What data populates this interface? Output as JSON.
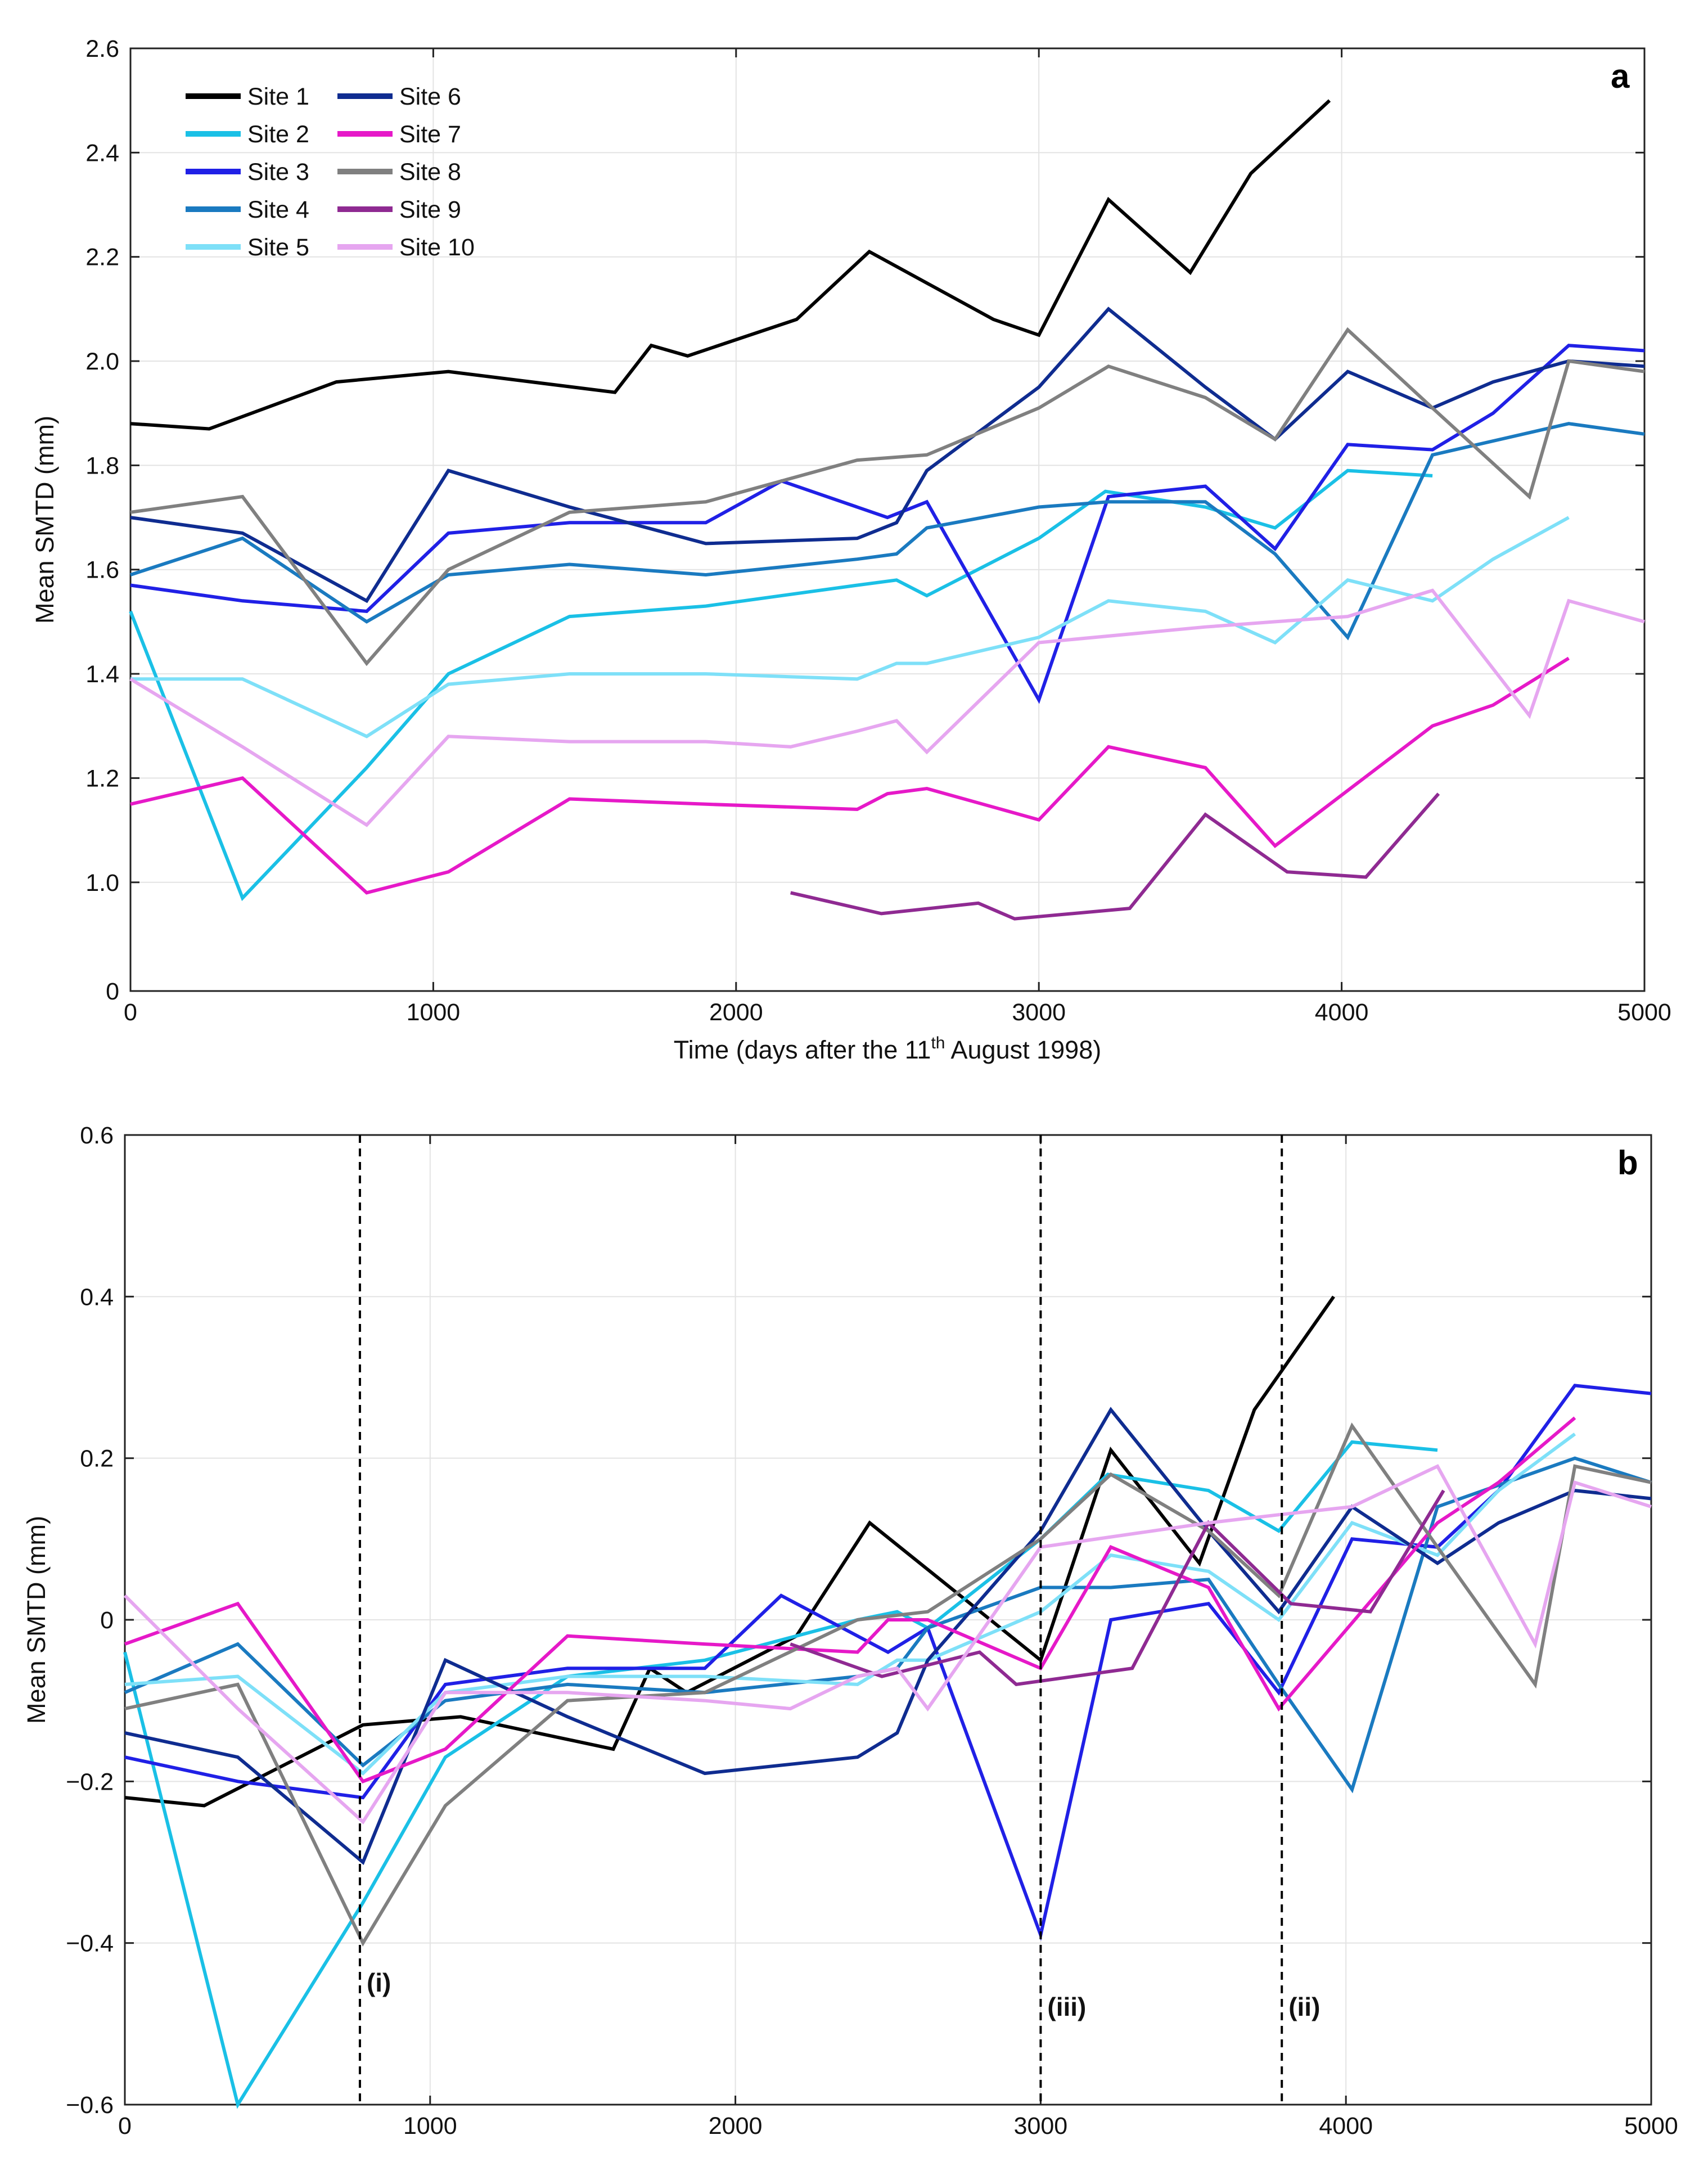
{
  "chart_data": [
    {
      "type": "line",
      "panel_label": "a",
      "title": "",
      "xlabel": "Time (days after the 11th August 1998)",
      "xlabel_main": "Time (days after the 11",
      "xlabel_sup": "th",
      "xlabel_tail": " August 1998)",
      "ylabel": "Mean SMTD (mm)",
      "xlim": [
        0,
        5000
      ],
      "ylim": [
        0,
        2.6
      ],
      "y_axis_gap": [
        0,
        0.9
      ],
      "xticks": [
        0,
        1000,
        2000,
        3000,
        4000,
        5000
      ],
      "xtick_labels": [
        "0",
        "1000",
        "2000",
        "3000",
        "4000",
        "5000"
      ],
      "yticks": [
        0,
        1.0,
        1.2,
        1.4,
        1.6,
        1.8,
        2.0,
        2.2,
        2.4,
        2.6
      ],
      "ytick_labels": [
        "0",
        "1.0",
        "1.2",
        "1.4",
        "1.6",
        "1.8",
        "2.0",
        "2.2",
        "2.4",
        "2.6"
      ],
      "grid": true,
      "legend_position": "top-left",
      "legend_columns": 2,
      "series": [
        {
          "name": "Site 1",
          "color": "#000000",
          "x": [
            0,
            260,
            680,
            1050,
            1600,
            1720,
            1840,
            2200,
            2440,
            2850,
            3000,
            3230,
            3500,
            3700,
            3960
          ],
          "y": [
            1.88,
            1.87,
            1.96,
            1.98,
            1.94,
            2.03,
            2.01,
            2.08,
            2.21,
            2.08,
            2.05,
            2.31,
            2.17,
            2.36,
            2.5
          ]
        },
        {
          "name": "Site 2",
          "color": "#1ac0e6",
          "x": [
            0,
            370,
            780,
            1050,
            1450,
            1900,
            2400,
            2530,
            2630,
            3000,
            3220,
            3550,
            3780,
            4020,
            4300
          ],
          "y": [
            1.52,
            0.97,
            1.22,
            1.4,
            1.51,
            1.53,
            1.57,
            1.58,
            1.55,
            1.66,
            1.75,
            1.72,
            1.68,
            1.79,
            1.78
          ]
        },
        {
          "name": "Site 3",
          "color": "#2020e6",
          "x": [
            0,
            370,
            780,
            1050,
            1450,
            1900,
            2150,
            2500,
            2630,
            3000,
            3230,
            3550,
            3780,
            4020,
            4300,
            4500,
            4750,
            5000
          ],
          "y": [
            1.57,
            1.54,
            1.52,
            1.67,
            1.69,
            1.69,
            1.77,
            1.7,
            1.73,
            1.35,
            1.74,
            1.76,
            1.64,
            1.84,
            1.83,
            1.9,
            2.03,
            2.02
          ]
        },
        {
          "name": "Site 4",
          "color": "#1a7ac0",
          "x": [
            0,
            370,
            780,
            1050,
            1450,
            1900,
            2400,
            2530,
            2630,
            3000,
            3230,
            3550,
            3780,
            4020,
            4300,
            4750,
            5000
          ],
          "y": [
            1.59,
            1.66,
            1.5,
            1.59,
            1.61,
            1.59,
            1.62,
            1.63,
            1.68,
            1.72,
            1.73,
            1.73,
            1.63,
            1.47,
            1.82,
            1.88,
            1.86
          ]
        },
        {
          "name": "Site 5",
          "color": "#7ee0f8",
          "x": [
            0,
            370,
            780,
            1050,
            1450,
            1900,
            2400,
            2530,
            2630,
            3000,
            3230,
            3550,
            3780,
            4020,
            4300,
            4500,
            4750
          ],
          "y": [
            1.39,
            1.39,
            1.28,
            1.38,
            1.4,
            1.4,
            1.39,
            1.42,
            1.42,
            1.47,
            1.54,
            1.52,
            1.46,
            1.58,
            1.54,
            1.62,
            1.7
          ]
        },
        {
          "name": "Site 6",
          "color": "#0f2c90",
          "x": [
            0,
            370,
            780,
            1050,
            1450,
            1900,
            2400,
            2530,
            2630,
            3000,
            3230,
            3550,
            3780,
            4020,
            4300,
            4500,
            4750,
            5000
          ],
          "y": [
            1.7,
            1.67,
            1.54,
            1.79,
            1.72,
            1.65,
            1.66,
            1.69,
            1.79,
            1.95,
            2.1,
            1.95,
            1.85,
            1.98,
            1.91,
            1.96,
            2.0,
            1.99
          ]
        },
        {
          "name": "Site 7",
          "color": "#e619c8",
          "x": [
            0,
            370,
            780,
            1050,
            1450,
            1900,
            2400,
            2500,
            2630,
            3000,
            3230,
            3550,
            3780,
            4300,
            4500,
            4750
          ],
          "y": [
            1.15,
            1.2,
            0.98,
            1.02,
            1.16,
            1.15,
            1.14,
            1.17,
            1.18,
            1.12,
            1.26,
            1.22,
            1.07,
            1.3,
            1.34,
            1.43
          ]
        },
        {
          "name": "Site 8",
          "color": "#808080",
          "x": [
            0,
            370,
            780,
            1050,
            1450,
            1900,
            2400,
            2630,
            3000,
            3230,
            3550,
            3780,
            4020,
            4300,
            4620,
            4750,
            5000
          ],
          "y": [
            1.71,
            1.74,
            1.42,
            1.6,
            1.71,
            1.73,
            1.81,
            1.82,
            1.91,
            1.99,
            1.93,
            1.85,
            2.06,
            1.91,
            1.74,
            2.0,
            1.98
          ]
        },
        {
          "name": "Site 9",
          "color": "#8f2a92",
          "x": [
            2180,
            2480,
            2800,
            2920,
            3300,
            3550,
            3820,
            4080,
            4320
          ],
          "y": [
            0.98,
            0.94,
            0.96,
            0.93,
            0.95,
            1.13,
            1.02,
            1.01,
            1.17
          ]
        },
        {
          "name": "Site 10",
          "color": "#e6a6f0",
          "x": [
            0,
            370,
            780,
            1050,
            1450,
            1900,
            2180,
            2400,
            2530,
            2630,
            3000,
            3550,
            3780,
            4020,
            4300,
            4620,
            4750,
            5000
          ],
          "y": [
            1.39,
            1.26,
            1.11,
            1.28,
            1.27,
            1.27,
            1.26,
            1.29,
            1.31,
            1.25,
            1.46,
            1.49,
            1.5,
            1.51,
            1.56,
            1.32,
            1.54,
            1.5
          ]
        }
      ]
    },
    {
      "type": "line",
      "panel_label": "b",
      "title": "",
      "xlabel": "Time (days after the 11th August 1998)",
      "ylabel": "Mean SMTD (mm)",
      "xlim": [
        0,
        5000
      ],
      "ylim": [
        -0.6,
        0.6
      ],
      "xticks": [
        0,
        1000,
        2000,
        3000,
        4000,
        5000
      ],
      "xtick_labels": [
        "0",
        "1000",
        "2000",
        "3000",
        "4000",
        "5000"
      ],
      "yticks": [
        -0.6,
        -0.4,
        -0.2,
        0,
        0.2,
        0.4,
        0.6
      ],
      "ytick_labels": [
        "−0.6",
        "−0.4",
        "−0.2",
        "0",
        "0.2",
        "0.4",
        "0.6"
      ],
      "grid": true,
      "vlines": [
        {
          "x": 770,
          "label": "(i)",
          "label_y": -0.46
        },
        {
          "x": 3000,
          "label": "(iii)",
          "label_y": -0.49
        },
        {
          "x": 3790,
          "label": "(ii)",
          "label_y": -0.49
        }
      ],
      "series": [
        {
          "name": "Site 1",
          "color": "#000000",
          "x": [
            0,
            260,
            780,
            1100,
            1600,
            1720,
            1840,
            2200,
            2440,
            3000,
            3230,
            3520,
            3700,
            3960
          ],
          "y": [
            -0.22,
            -0.23,
            -0.13,
            -0.12,
            -0.16,
            -0.06,
            -0.09,
            -0.02,
            0.12,
            -0.05,
            0.21,
            0.07,
            0.26,
            0.4
          ]
        },
        {
          "name": "Site 2",
          "color": "#1ac0e6",
          "x": [
            0,
            370,
            780,
            1050,
            1450,
            1900,
            2400,
            2530,
            2630,
            3000,
            3220,
            3550,
            3780,
            4020,
            4300
          ],
          "y": [
            -0.04,
            -0.6,
            -0.35,
            -0.17,
            -0.07,
            -0.05,
            0.0,
            0.01,
            -0.01,
            0.1,
            0.18,
            0.16,
            0.11,
            0.22,
            0.21
          ]
        },
        {
          "name": "Site 3",
          "color": "#2020e6",
          "x": [
            0,
            370,
            780,
            1050,
            1450,
            1900,
            2150,
            2500,
            2630,
            3000,
            3230,
            3550,
            3780,
            4020,
            4300,
            4500,
            4750,
            5000
          ],
          "y": [
            -0.17,
            -0.2,
            -0.22,
            -0.08,
            -0.06,
            -0.06,
            0.03,
            -0.04,
            -0.01,
            -0.39,
            0.0,
            0.02,
            -0.09,
            0.1,
            0.09,
            0.16,
            0.29,
            0.28
          ]
        },
        {
          "name": "Site 4",
          "color": "#1a7ac0",
          "x": [
            0,
            370,
            780,
            1050,
            1450,
            1900,
            2400,
            2530,
            2630,
            3000,
            3230,
            3550,
            3780,
            4020,
            4300,
            4750,
            5000
          ],
          "y": [
            -0.09,
            -0.03,
            -0.18,
            -0.1,
            -0.08,
            -0.09,
            -0.07,
            -0.06,
            -0.01,
            0.04,
            0.04,
            0.05,
            -0.08,
            -0.21,
            0.14,
            0.2,
            0.17
          ]
        },
        {
          "name": "Site 5",
          "color": "#7ee0f8",
          "x": [
            0,
            370,
            780,
            1050,
            1450,
            1900,
            2400,
            2530,
            2630,
            3000,
            3230,
            3550,
            3780,
            4020,
            4300,
            4500,
            4750
          ],
          "y": [
            -0.08,
            -0.07,
            -0.19,
            -0.09,
            -0.07,
            -0.07,
            -0.08,
            -0.05,
            -0.05,
            0.01,
            0.08,
            0.06,
            0.0,
            0.12,
            0.08,
            0.16,
            0.23
          ]
        },
        {
          "name": "Site 6",
          "color": "#0f2c90",
          "x": [
            0,
            370,
            780,
            1050,
            1450,
            1900,
            2400,
            2530,
            2630,
            3000,
            3230,
            3550,
            3780,
            4020,
            4300,
            4500,
            4750,
            5000
          ],
          "y": [
            -0.14,
            -0.17,
            -0.3,
            -0.05,
            -0.12,
            -0.19,
            -0.17,
            -0.14,
            -0.05,
            0.11,
            0.26,
            0.11,
            0.01,
            0.14,
            0.07,
            0.12,
            0.16,
            0.15
          ]
        },
        {
          "name": "Site 7",
          "color": "#e619c8",
          "x": [
            0,
            370,
            780,
            1050,
            1450,
            1900,
            2400,
            2500,
            2630,
            3000,
            3230,
            3550,
            3780,
            4300,
            4500,
            4750
          ],
          "y": [
            -0.03,
            0.02,
            -0.2,
            -0.16,
            -0.02,
            -0.03,
            -0.04,
            0.0,
            0.0,
            -0.06,
            0.09,
            0.04,
            -0.11,
            0.12,
            0.17,
            0.25
          ]
        },
        {
          "name": "Site 8",
          "color": "#808080",
          "x": [
            0,
            370,
            780,
            1050,
            1450,
            1900,
            2400,
            2630,
            3000,
            3230,
            3550,
            3780,
            4020,
            4300,
            4620,
            4750,
            5000
          ],
          "y": [
            -0.11,
            -0.08,
            -0.4,
            -0.23,
            -0.1,
            -0.09,
            0.0,
            0.01,
            0.1,
            0.18,
            0.11,
            0.03,
            0.24,
            0.09,
            -0.08,
            0.19,
            0.17
          ]
        },
        {
          "name": "Site 9",
          "color": "#8f2a92",
          "x": [
            2180,
            2480,
            2800,
            2920,
            3300,
            3550,
            3820,
            4080,
            4320
          ],
          "y": [
            -0.03,
            -0.07,
            -0.04,
            -0.08,
            -0.06,
            0.12,
            0.02,
            0.01,
            0.16
          ]
        },
        {
          "name": "Site 10",
          "color": "#e6a6f0",
          "x": [
            0,
            370,
            780,
            1050,
            1450,
            1900,
            2180,
            2400,
            2530,
            2630,
            3000,
            3550,
            3780,
            4020,
            4300,
            4620,
            4750,
            5000
          ],
          "y": [
            0.03,
            -0.11,
            -0.25,
            -0.09,
            -0.09,
            -0.1,
            -0.11,
            -0.07,
            -0.06,
            -0.11,
            0.09,
            0.12,
            0.13,
            0.14,
            0.19,
            -0.03,
            0.17,
            0.14
          ]
        }
      ]
    }
  ]
}
